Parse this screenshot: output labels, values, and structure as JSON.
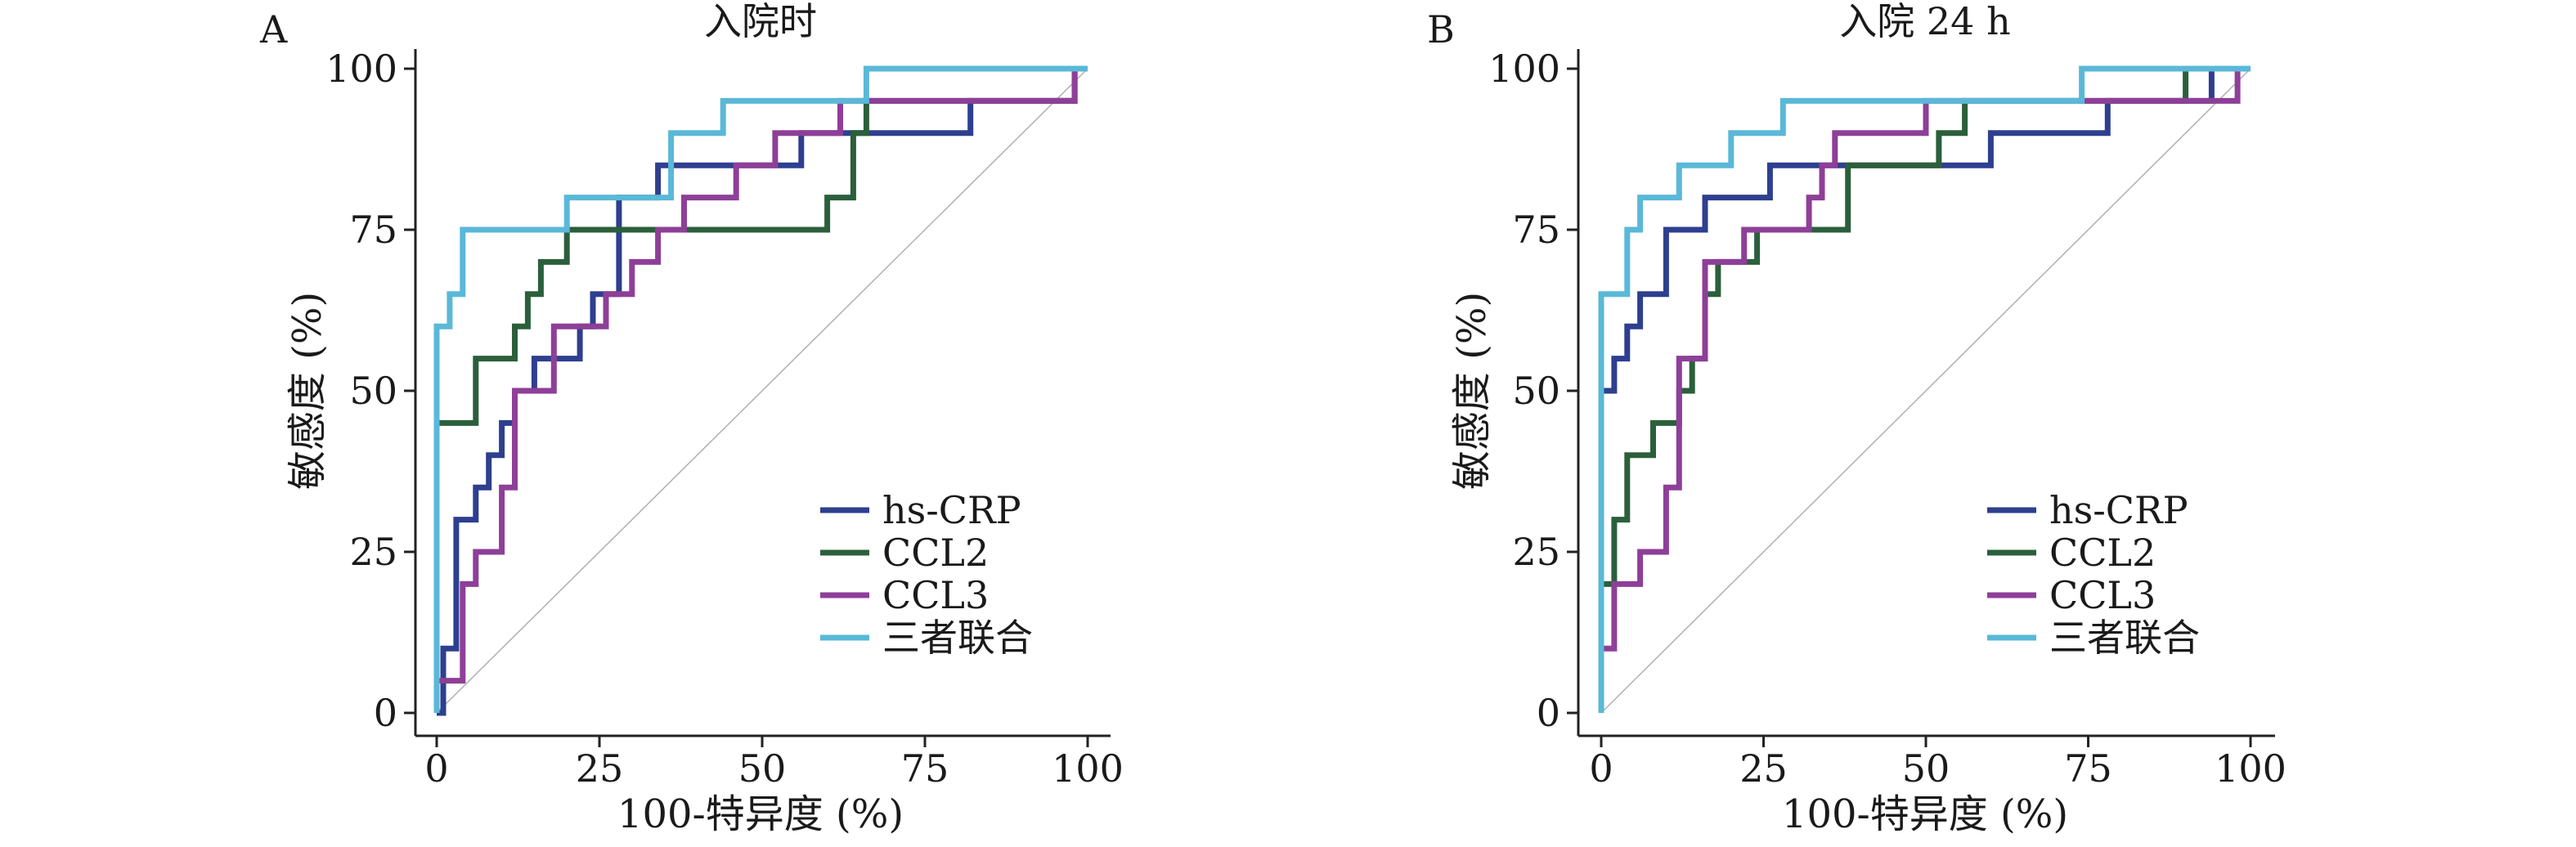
{
  "chart_data": [
    {
      "type": "line",
      "panel_label": "A",
      "title": "入院时",
      "xlabel": "100-特异度 (%)",
      "ylabel": "敏感度 (%)",
      "xlim": [
        0,
        100
      ],
      "ylim": [
        0,
        100
      ],
      "xticks": [
        "0",
        "25",
        "50",
        "75",
        "100"
      ],
      "yticks": [
        "0",
        "25",
        "50",
        "75",
        "100"
      ],
      "reference_line": [
        [
          0,
          0
        ],
        [
          100,
          100
        ]
      ],
      "series": [
        {
          "name": "hs-CRP",
          "color": "#2e3f8f",
          "points": [
            [
              0,
              0
            ],
            [
              1,
              0
            ],
            [
              1,
              10
            ],
            [
              3,
              10
            ],
            [
              3,
              30
            ],
            [
              6,
              30
            ],
            [
              6,
              35
            ],
            [
              8,
              35
            ],
            [
              8,
              40
            ],
            [
              10,
              40
            ],
            [
              10,
              45
            ],
            [
              12,
              45
            ],
            [
              12,
              50
            ],
            [
              15,
              50
            ],
            [
              15,
              55
            ],
            [
              22,
              55
            ],
            [
              22,
              60
            ],
            [
              24,
              60
            ],
            [
              24,
              65
            ],
            [
              28,
              65
            ],
            [
              28,
              80
            ],
            [
              34,
              80
            ],
            [
              34,
              85
            ],
            [
              56,
              85
            ],
            [
              56,
              90
            ],
            [
              82,
              90
            ],
            [
              82,
              95
            ],
            [
              98,
              95
            ],
            [
              98,
              100
            ],
            [
              100,
              100
            ]
          ]
        },
        {
          "name": "CCL2",
          "color": "#2b5f3b",
          "points": [
            [
              0,
              0
            ],
            [
              0,
              45
            ],
            [
              6,
              45
            ],
            [
              6,
              55
            ],
            [
              12,
              55
            ],
            [
              12,
              60
            ],
            [
              14,
              60
            ],
            [
              14,
              65
            ],
            [
              16,
              65
            ],
            [
              16,
              70
            ],
            [
              20,
              70
            ],
            [
              20,
              75
            ],
            [
              60,
              75
            ],
            [
              60,
              80
            ],
            [
              64,
              80
            ],
            [
              64,
              90
            ],
            [
              66,
              90
            ],
            [
              66,
              95
            ],
            [
              98,
              95
            ],
            [
              98,
              100
            ],
            [
              100,
              100
            ]
          ]
        },
        {
          "name": "CCL3",
          "color": "#8e3f98",
          "points": [
            [
              0,
              0
            ],
            [
              0,
              5
            ],
            [
              4,
              5
            ],
            [
              4,
              20
            ],
            [
              6,
              20
            ],
            [
              6,
              25
            ],
            [
              10,
              25
            ],
            [
              10,
              35
            ],
            [
              12,
              35
            ],
            [
              12,
              50
            ],
            [
              18,
              50
            ],
            [
              18,
              60
            ],
            [
              26,
              60
            ],
            [
              26,
              65
            ],
            [
              30,
              65
            ],
            [
              30,
              70
            ],
            [
              34,
              70
            ],
            [
              34,
              75
            ],
            [
              38,
              75
            ],
            [
              38,
              80
            ],
            [
              46,
              80
            ],
            [
              46,
              85
            ],
            [
              52,
              85
            ],
            [
              52,
              90
            ],
            [
              62,
              90
            ],
            [
              62,
              95
            ],
            [
              98,
              95
            ],
            [
              98,
              100
            ],
            [
              100,
              100
            ]
          ]
        },
        {
          "name": "三者联合",
          "color": "#5ab8d8",
          "points": [
            [
              0,
              0
            ],
            [
              0,
              60
            ],
            [
              2,
              60
            ],
            [
              2,
              65
            ],
            [
              4,
              65
            ],
            [
              4,
              75
            ],
            [
              20,
              75
            ],
            [
              20,
              80
            ],
            [
              36,
              80
            ],
            [
              36,
              90
            ],
            [
              44,
              90
            ],
            [
              44,
              95
            ],
            [
              66,
              95
            ],
            [
              66,
              100
            ],
            [
              100,
              100
            ]
          ]
        }
      ],
      "legend": {
        "entries": [
          "hs-CRP",
          "CCL2",
          "CCL3",
          "三者联合"
        ],
        "position": "lower-right"
      }
    },
    {
      "type": "line",
      "panel_label": "B",
      "title": "入院 24 h",
      "xlabel": "100-特异度 (%)",
      "ylabel": "敏感度 (%)",
      "xlim": [
        0,
        100
      ],
      "ylim": [
        0,
        100
      ],
      "xticks": [
        "0",
        "25",
        "50",
        "75",
        "100"
      ],
      "yticks": [
        "0",
        "25",
        "50",
        "75",
        "100"
      ],
      "reference_line": [
        [
          0,
          0
        ],
        [
          100,
          100
        ]
      ],
      "series": [
        {
          "name": "hs-CRP",
          "color": "#2e3f8f",
          "points": [
            [
              0,
              0
            ],
            [
              0,
              50
            ],
            [
              2,
              50
            ],
            [
              2,
              55
            ],
            [
              4,
              55
            ],
            [
              4,
              60
            ],
            [
              6,
              60
            ],
            [
              6,
              65
            ],
            [
              10,
              65
            ],
            [
              10,
              75
            ],
            [
              16,
              75
            ],
            [
              16,
              80
            ],
            [
              26,
              80
            ],
            [
              26,
              85
            ],
            [
              60,
              85
            ],
            [
              60,
              90
            ],
            [
              78,
              90
            ],
            [
              78,
              95
            ],
            [
              94,
              95
            ],
            [
              94,
              100
            ],
            [
              100,
              100
            ]
          ]
        },
        {
          "name": "CCL2",
          "color": "#2b5f3b",
          "points": [
            [
              0,
              0
            ],
            [
              0,
              20
            ],
            [
              2,
              20
            ],
            [
              2,
              30
            ],
            [
              4,
              30
            ],
            [
              4,
              40
            ],
            [
              8,
              40
            ],
            [
              8,
              45
            ],
            [
              12,
              45
            ],
            [
              12,
              50
            ],
            [
              14,
              50
            ],
            [
              14,
              55
            ],
            [
              16,
              55
            ],
            [
              16,
              65
            ],
            [
              18,
              65
            ],
            [
              18,
              70
            ],
            [
              24,
              70
            ],
            [
              24,
              75
            ],
            [
              38,
              75
            ],
            [
              38,
              85
            ],
            [
              52,
              85
            ],
            [
              52,
              90
            ],
            [
              56,
              90
            ],
            [
              56,
              95
            ],
            [
              90,
              95
            ],
            [
              90,
              100
            ],
            [
              100,
              100
            ]
          ]
        },
        {
          "name": "CCL3",
          "color": "#8e3f98",
          "points": [
            [
              0,
              0
            ],
            [
              0,
              10
            ],
            [
              2,
              10
            ],
            [
              2,
              20
            ],
            [
              6,
              20
            ],
            [
              6,
              25
            ],
            [
              10,
              25
            ],
            [
              10,
              35
            ],
            [
              12,
              35
            ],
            [
              12,
              55
            ],
            [
              16,
              55
            ],
            [
              16,
              70
            ],
            [
              22,
              70
            ],
            [
              22,
              75
            ],
            [
              32,
              75
            ],
            [
              32,
              80
            ],
            [
              34,
              80
            ],
            [
              34,
              85
            ],
            [
              36,
              85
            ],
            [
              36,
              90
            ],
            [
              50,
              90
            ],
            [
              50,
              95
            ],
            [
              98,
              95
            ],
            [
              98,
              100
            ],
            [
              100,
              100
            ]
          ]
        },
        {
          "name": "三者联合",
          "color": "#5ab8d8",
          "points": [
            [
              0,
              0
            ],
            [
              0,
              65
            ],
            [
              4,
              65
            ],
            [
              4,
              75
            ],
            [
              6,
              75
            ],
            [
              6,
              80
            ],
            [
              12,
              80
            ],
            [
              12,
              85
            ],
            [
              20,
              85
            ],
            [
              20,
              90
            ],
            [
              28,
              90
            ],
            [
              28,
              95
            ],
            [
              74,
              95
            ],
            [
              74,
              100
            ],
            [
              100,
              100
            ]
          ]
        }
      ],
      "legend": {
        "entries": [
          "hs-CRP",
          "CCL2",
          "CCL3",
          "三者联合"
        ],
        "position": "lower-right"
      }
    }
  ]
}
